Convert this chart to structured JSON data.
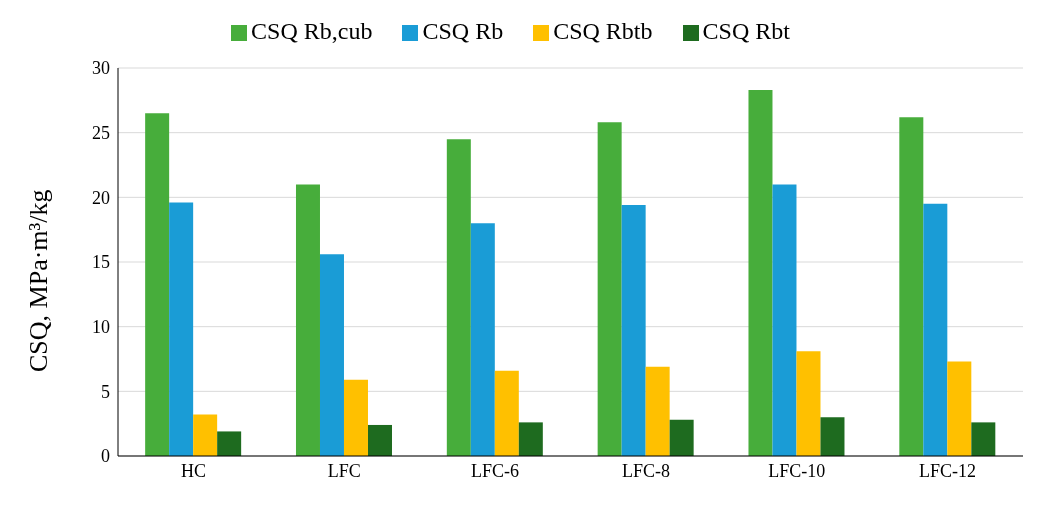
{
  "chart_data": {
    "type": "bar",
    "ylabel": "CSQ, MPa·m³/kg",
    "categories": [
      "HC",
      "LFC",
      "LFC-6",
      "LFC-8",
      "LFC-10",
      "LFC-12"
    ],
    "series": [
      {
        "name": "CSQ Rb,cub",
        "color": "#47ad3b",
        "values": [
          26.5,
          21.0,
          24.5,
          25.8,
          28.3,
          26.2
        ]
      },
      {
        "name": "CSQ Rb",
        "color": "#1a9cd6",
        "values": [
          19.6,
          15.6,
          18.0,
          19.4,
          21.0,
          19.5
        ]
      },
      {
        "name": "CSQ Rbtb",
        "color": "#ffc000",
        "values": [
          3.2,
          5.9,
          6.6,
          6.9,
          8.1,
          7.3
        ]
      },
      {
        "name": "CSQ Rbt",
        "color": "#1e6b1f",
        "values": [
          1.9,
          2.4,
          2.6,
          2.8,
          3.0,
          2.6
        ]
      }
    ],
    "ylim": [
      0,
      30
    ],
    "yticks": [
      0,
      5,
      10,
      15,
      20,
      25,
      30
    ],
    "grid": "y",
    "legend": "top"
  }
}
